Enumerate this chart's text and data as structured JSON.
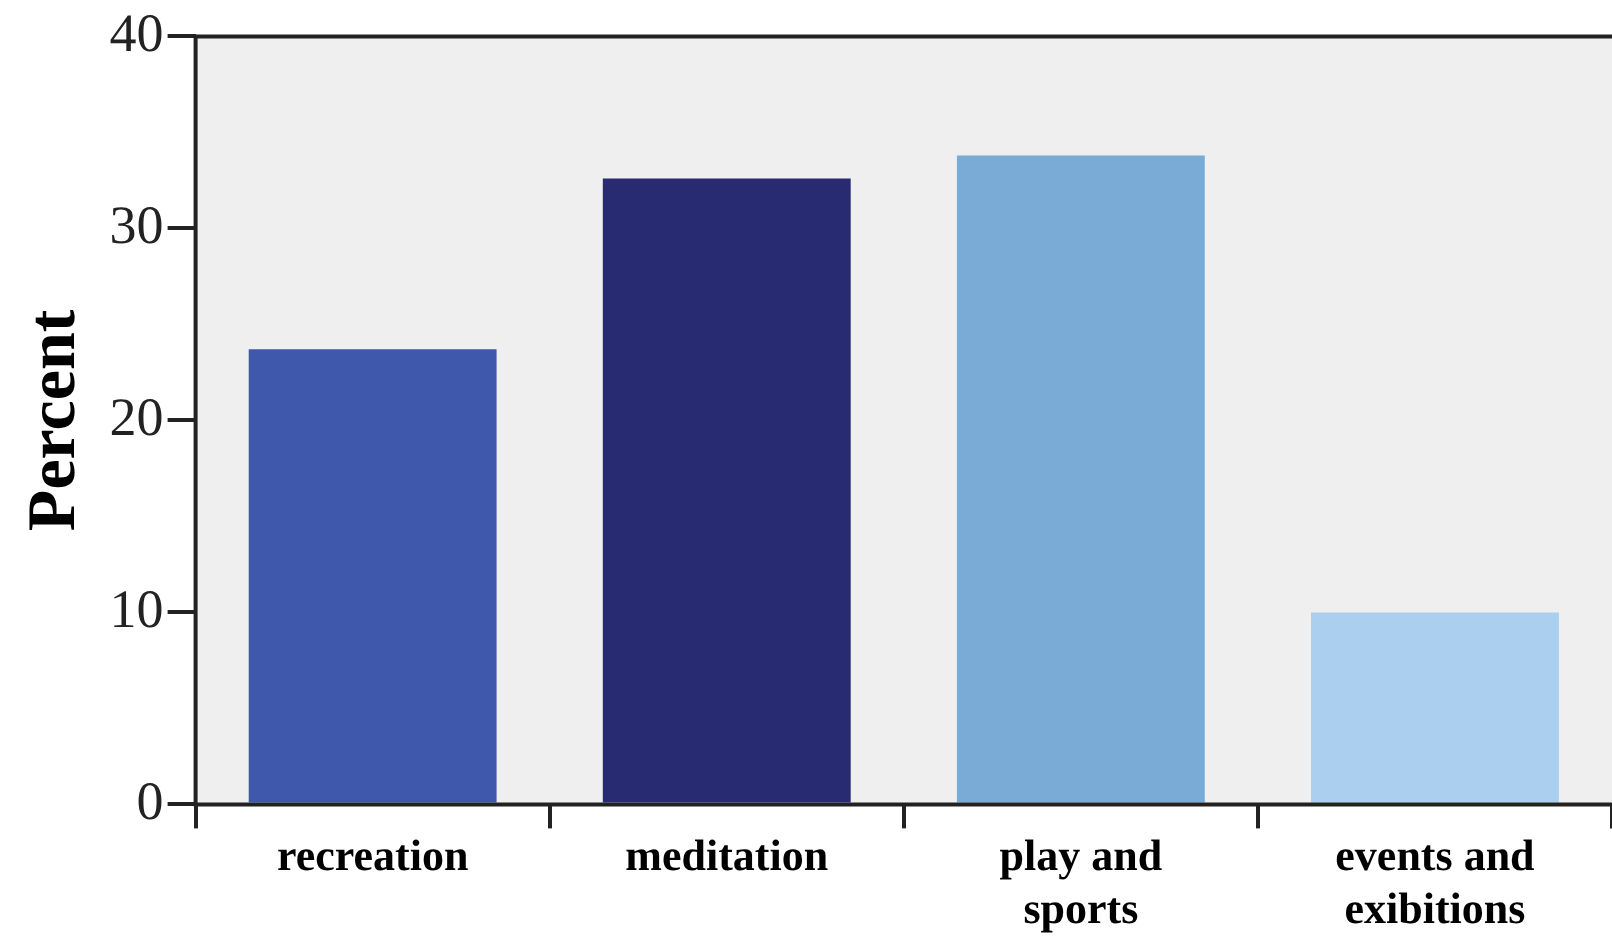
{
  "chart_data": {
    "type": "bar",
    "ylabel": "Percent",
    "categories": [
      "recreation",
      "meditation",
      "play and sports",
      "events and exibitions"
    ],
    "values": [
      23.7,
      32.6,
      33.8,
      10.0
    ],
    "colors": [
      "#3f58ab",
      "#282a72",
      "#7aaad6",
      "#abcfee"
    ],
    "ylim": [
      0,
      40
    ],
    "yticks": [
      0,
      10,
      20,
      30,
      40
    ],
    "grid": false,
    "legend": false
  }
}
